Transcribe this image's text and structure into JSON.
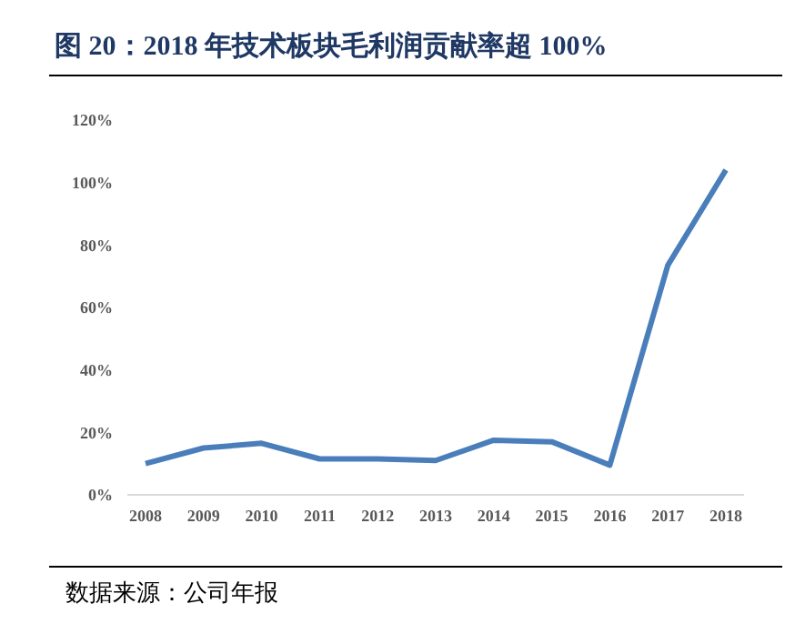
{
  "chart_data": {
    "type": "line",
    "title": "图 20：2018 年技术板块毛利润贡献率超 100%",
    "categories": [
      "2008",
      "2009",
      "2010",
      "2011",
      "2012",
      "2013",
      "2014",
      "2015",
      "2016",
      "2017",
      "2018"
    ],
    "series": [
      {
        "color": "#4a7ebb",
        "values": [
          10,
          15,
          16.5,
          11.5,
          11.5,
          11,
          17.5,
          17,
          9.5,
          73.5,
          104
        ]
      }
    ],
    "ylim": [
      0,
      120
    ],
    "yticks": [
      {
        "value": 0,
        "label": "0%"
      },
      {
        "value": 20,
        "label": "20%"
      },
      {
        "value": 40,
        "label": "40%"
      },
      {
        "value": 60,
        "label": "60%"
      },
      {
        "value": 80,
        "label": "80%"
      },
      {
        "value": 100,
        "label": "100%"
      },
      {
        "value": 120,
        "label": "120%"
      }
    ],
    "marker": "none",
    "annotations": [
      "数据来源：公司年报"
    ]
  }
}
